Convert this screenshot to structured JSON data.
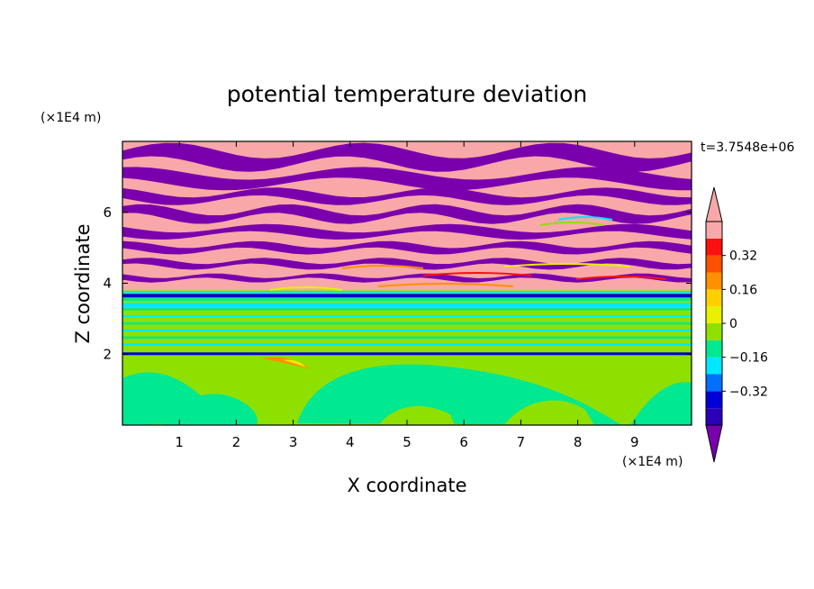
{
  "chart_data": {
    "type": "heatmap",
    "title": "potential temperature deviation",
    "xlabel": "X coordinate",
    "ylabel": "Z coordinate",
    "x_unit": "(×1E4 m)",
    "y_unit": "(×1E4 m)",
    "time_label": "t=3.7548e+06",
    "xlim": [
      0,
      10
    ],
    "ylim": [
      0,
      8
    ],
    "x_ticks": [
      "1",
      "2",
      "3",
      "4",
      "5",
      "6",
      "7",
      "8",
      "9"
    ],
    "y_ticks": [
      "2",
      "4",
      "6"
    ],
    "colorbar": {
      "levels": [
        -0.48,
        -0.4,
        -0.32,
        -0.24,
        -0.16,
        -0.08,
        0,
        0.08,
        0.16,
        0.24,
        0.32,
        0.4,
        0.48
      ],
      "colors": [
        "#7b00ad",
        "#2a00b8",
        "#0000d8",
        "#0070ff",
        "#00e8ff",
        "#00e890",
        "#8ee000",
        "#e8f000",
        "#ffd000",
        "#ff9000",
        "#ff5000",
        "#ff1010",
        "#f8a8a8",
        "#f8a8a8"
      ],
      "tick_labels": [
        "0.32",
        "0.16",
        "0",
        "−0.16",
        "−0.32"
      ],
      "extend": "both"
    },
    "bands": [
      {
        "z_min": 0.0,
        "z_max": 2.0,
        "dominant": "#8ee000",
        "secondary": "#00e890"
      },
      {
        "z_min": 2.0,
        "z_max": 3.3,
        "dominant": "#8ee000",
        "secondary": "#00e890"
      },
      {
        "z_min": 3.3,
        "z_max": 3.8,
        "dominant": "#00e8ff",
        "secondary": "#0000d8"
      },
      {
        "z_min": 3.8,
        "z_max": 8.0,
        "dominant": "#f8a8a8",
        "secondary": "#7b00ad"
      }
    ]
  }
}
